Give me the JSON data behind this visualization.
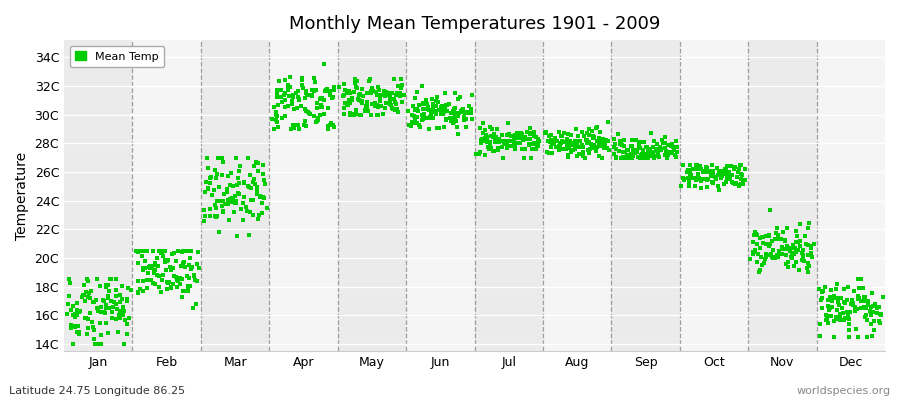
{
  "title": "Monthly Mean Temperatures 1901 - 2009",
  "ylabel": "Temperature",
  "subtitle_left": "Latitude 24.75 Longitude 86.25",
  "subtitle_right": "worldspecies.org",
  "legend_label": "Mean Temp",
  "dot_color": "#00CC00",
  "background_color": "#ffffff",
  "band_colors": [
    "#ebebeb",
    "#f5f5f5"
  ],
  "yticks": [
    14,
    16,
    18,
    20,
    22,
    24,
    26,
    28,
    30,
    32,
    34
  ],
  "ylim": [
    13.5,
    35.2
  ],
  "months": [
    "Jan",
    "Feb",
    "Mar",
    "Apr",
    "May",
    "Jun",
    "Jul",
    "Aug",
    "Sep",
    "Oct",
    "Nov",
    "Dec"
  ],
  "month_means": [
    16.5,
    19.2,
    24.2,
    30.8,
    31.2,
    30.2,
    28.2,
    28.0,
    27.5,
    25.7,
    20.7,
    16.5
  ],
  "month_stds": [
    1.2,
    1.1,
    1.4,
    1.0,
    0.7,
    0.7,
    0.5,
    0.5,
    0.5,
    0.5,
    0.8,
    1.0
  ],
  "month_ranges": [
    [
      14.0,
      18.5
    ],
    [
      16.5,
      20.5
    ],
    [
      21.5,
      27.0
    ],
    [
      29.0,
      33.5
    ],
    [
      30.0,
      32.5
    ],
    [
      27.5,
      32.0
    ],
    [
      27.0,
      29.5
    ],
    [
      27.0,
      29.5
    ],
    [
      27.0,
      29.0
    ],
    [
      24.5,
      26.5
    ],
    [
      19.0,
      23.5
    ],
    [
      14.5,
      18.5
    ]
  ],
  "n_years": 109
}
